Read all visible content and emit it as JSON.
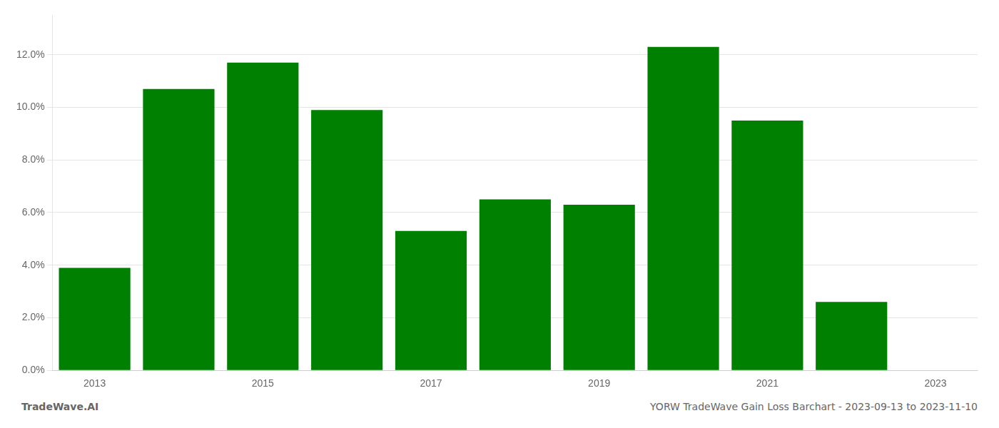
{
  "chart_data": {
    "type": "bar",
    "title": "YORW TradeWave Gain Loss Barchart - 2023-09-13 to 2023-11-10",
    "annotations": [
      "TradeWave.AI"
    ],
    "categories": [
      "2013",
      null,
      "2015",
      null,
      "2017",
      null,
      "2019",
      null,
      "2021",
      null,
      "2023"
    ],
    "values": [
      0.039,
      0.107,
      0.117,
      0.099,
      0.053,
      0.065,
      0.063,
      0.123,
      0.095,
      0.026,
      null
    ],
    "color": "#008000",
    "ylim": [
      0,
      0.135
    ],
    "yticks": [
      {
        "value": 0.0,
        "label": "0.0%"
      },
      {
        "value": 0.02,
        "label": "2.0%"
      },
      {
        "value": 0.04,
        "label": "4.0%"
      },
      {
        "value": 0.06,
        "label": "6.0%"
      },
      {
        "value": 0.08,
        "label": "8.0%"
      },
      {
        "value": 0.1,
        "label": "10.0%"
      },
      {
        "value": 0.12,
        "label": "12.0%"
      }
    ],
    "grid": true
  }
}
